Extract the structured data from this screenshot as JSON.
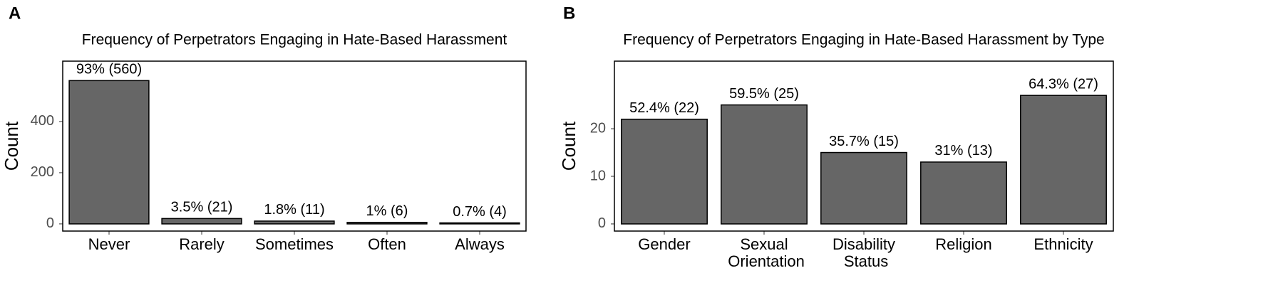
{
  "chart_data": [
    {
      "type": "bar",
      "panel": "A",
      "title": "Frequency of Perpetrators Engaging in Hate-Based Harassment",
      "y_label": "Count",
      "categories": [
        "Never",
        "Rarely",
        "Sometimes",
        "Often",
        "Always"
      ],
      "values": [
        560,
        21,
        11,
        6,
        4
      ],
      "value_labels": [
        "93% (560)",
        "3.5% (21)",
        "1.8% (11)",
        "1% (6)",
        "0.7% (4)"
      ],
      "color": "#666666",
      "ylim": [
        -28,
        636
      ],
      "yticks": [
        0,
        200,
        400
      ]
    },
    {
      "type": "bar",
      "panel": "B",
      "title": "Frequency of Perpetrators Engaging in Hate-Based Harassment by Type",
      "y_label": "Count",
      "categories": [
        "Gender",
        "Sexual Orientation",
        "Disability Status",
        "Religion",
        "Ethnicity"
      ],
      "values": [
        22,
        25,
        15,
        13,
        27
      ],
      "value_labels": [
        "52.4% (22)",
        "59.5% (25)",
        "35.7% (15)",
        "31% (13)",
        "64.3% (27)"
      ],
      "color": "#666666",
      "ylim": [
        -1.5,
        34.2
      ],
      "yticks": [
        0,
        10,
        20
      ]
    }
  ]
}
